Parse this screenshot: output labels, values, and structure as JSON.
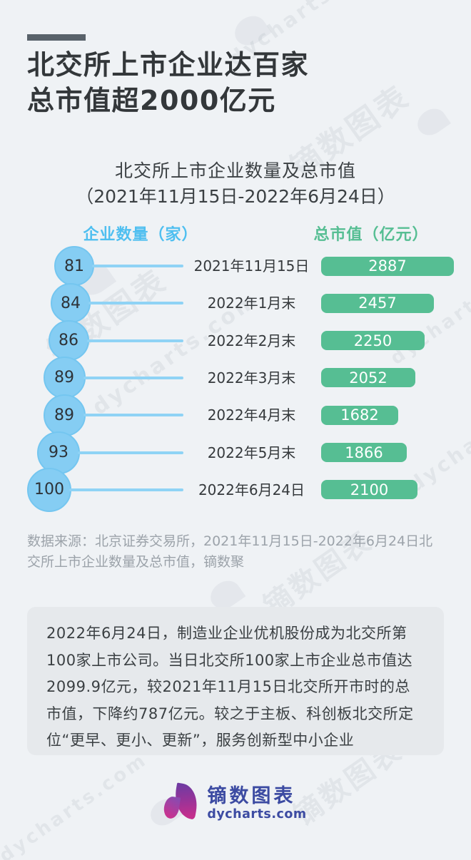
{
  "page": {
    "background_color": "#eff2f5",
    "accent_bar_color": "#59626a"
  },
  "header": {
    "title_line1": "北交所上市企业达百家",
    "title_line2": "总市值超2000亿元"
  },
  "chart_data": {
    "type": "bar",
    "orientation": "horizontal",
    "title": "北交所上市企业数量及总市值",
    "subtitle": "（2021年11月15日-2022年6月24日）",
    "categories": [
      "2021年11月15日",
      "2022年1月末",
      "2022年2月末",
      "2022年3月末",
      "2022年4月末",
      "2022年5月末",
      "2022年6月24日"
    ],
    "series": [
      {
        "name": "企业数量（家）",
        "values": [
          81,
          84,
          86,
          89,
          89,
          93,
          100
        ],
        "mark": "bubble",
        "color": "#85cdf3"
      },
      {
        "name": "总市值（亿元）",
        "values": [
          2887,
          2457,
          2250,
          2052,
          1682,
          1866,
          2100
        ],
        "mark": "bar",
        "color": "#56be93"
      }
    ],
    "legend_position": "top",
    "grid": false,
    "value_labels_shown": true
  },
  "colors": {
    "count_bubble": "#85cdf3",
    "connector_line": "#8fd3f5",
    "marketcap_bar": "#56be93",
    "count_header_text": "#4fbff0",
    "marketcap_header_text": "#56be93",
    "note_box_background": "#e6e9ec",
    "brand_text": "#3c4ba2"
  },
  "source": "数据来源：北京证券交易所，2021年11月15日-2022年6月24日北交所上市企业数量及总市值，镝数聚",
  "note": "2022年6月24日，制造业企业优机股份成为北交所第100家上市公司。当日北交所100家上市企业总市值达2099.9亿元，较2021年11月15日北交所开市时的总市值，下降约787亿元。较之于主板、科创板北交所定位“更早、更小、更新”，服务创新型中小企业",
  "footer": {
    "brand": "镝数图表",
    "site": "dycharts.com"
  },
  "watermark": {
    "brand": "镝数图表",
    "site": "dycharts.com"
  }
}
